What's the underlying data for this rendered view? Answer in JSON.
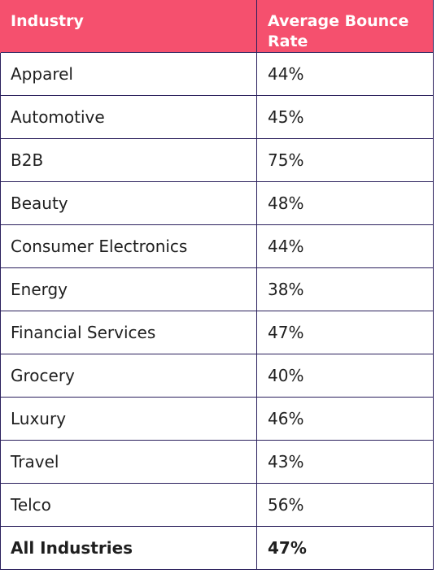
{
  "table": {
    "header_color": "#f5506e",
    "border_color": "#2a1f5c",
    "headers": [
      "Industry",
      "Average Bounce Rate"
    ],
    "rows": [
      {
        "industry": "Apparel",
        "bounce_rate": "44%"
      },
      {
        "industry": "Automotive",
        "bounce_rate": "45%"
      },
      {
        "industry": "B2B",
        "bounce_rate": "75%"
      },
      {
        "industry": "Beauty",
        "bounce_rate": "48%"
      },
      {
        "industry": "Consumer Electronics",
        "bounce_rate": "44%"
      },
      {
        "industry": "Energy",
        "bounce_rate": "38%"
      },
      {
        "industry": "Financial Services",
        "bounce_rate": "47%"
      },
      {
        "industry": "Grocery",
        "bounce_rate": "40%"
      },
      {
        "industry": "Luxury",
        "bounce_rate": "46%"
      },
      {
        "industry": "Travel",
        "bounce_rate": "43%"
      },
      {
        "industry": "Telco",
        "bounce_rate": "56%"
      }
    ],
    "total": {
      "industry": "All Industries",
      "bounce_rate": "47%"
    }
  }
}
